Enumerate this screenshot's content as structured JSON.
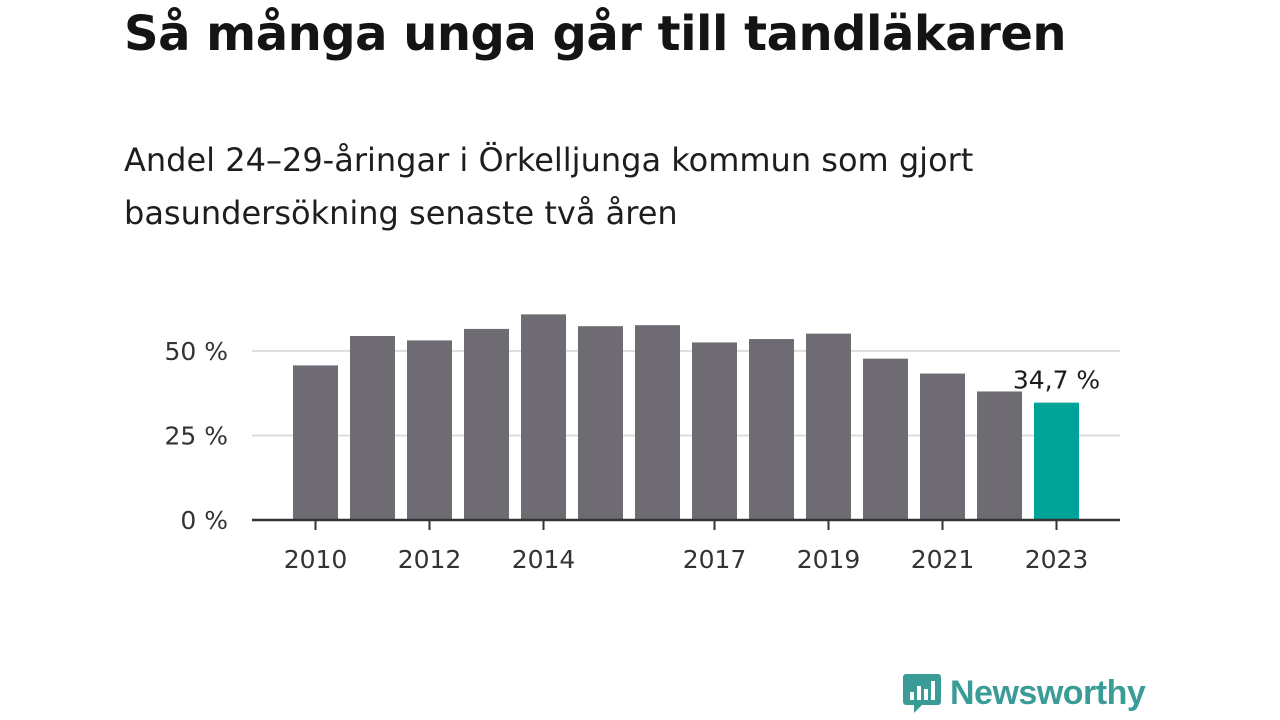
{
  "title": "Så många unga går till tandläkaren",
  "subtitle": "Andel 24–29-åringar i Örkelljunga kommun som gjort basundersökning senaste två åren",
  "brand": "Newsworthy",
  "colors": {
    "bar": "#6e6c72",
    "highlight": "#00a398",
    "grid": "#dddddd",
    "axis": "#333333",
    "brand": "#3a9c96"
  },
  "chart_data": {
    "type": "bar",
    "categories": [
      "2010",
      "2011",
      "2012",
      "2013",
      "2014",
      "2015",
      "2016",
      "2017",
      "2018",
      "2019",
      "2020",
      "2021",
      "2022",
      "2023"
    ],
    "values": [
      45.7,
      54.4,
      53.1,
      56.5,
      60.8,
      57.3,
      57.6,
      52.5,
      53.5,
      55.1,
      47.7,
      43.3,
      38.0,
      34.7
    ],
    "highlight_index": 13,
    "highlight_label": "34,7 %",
    "x_tick_labels": [
      "2010",
      "2012",
      "2014",
      "2017",
      "2019",
      "2021",
      "2023"
    ],
    "y_ticks": [
      0,
      25,
      50
    ],
    "y_tick_labels": [
      "0 %",
      "25 %",
      "50 %"
    ],
    "ylim": [
      0,
      62
    ],
    "grid": true,
    "xlabel": "",
    "ylabel": ""
  }
}
